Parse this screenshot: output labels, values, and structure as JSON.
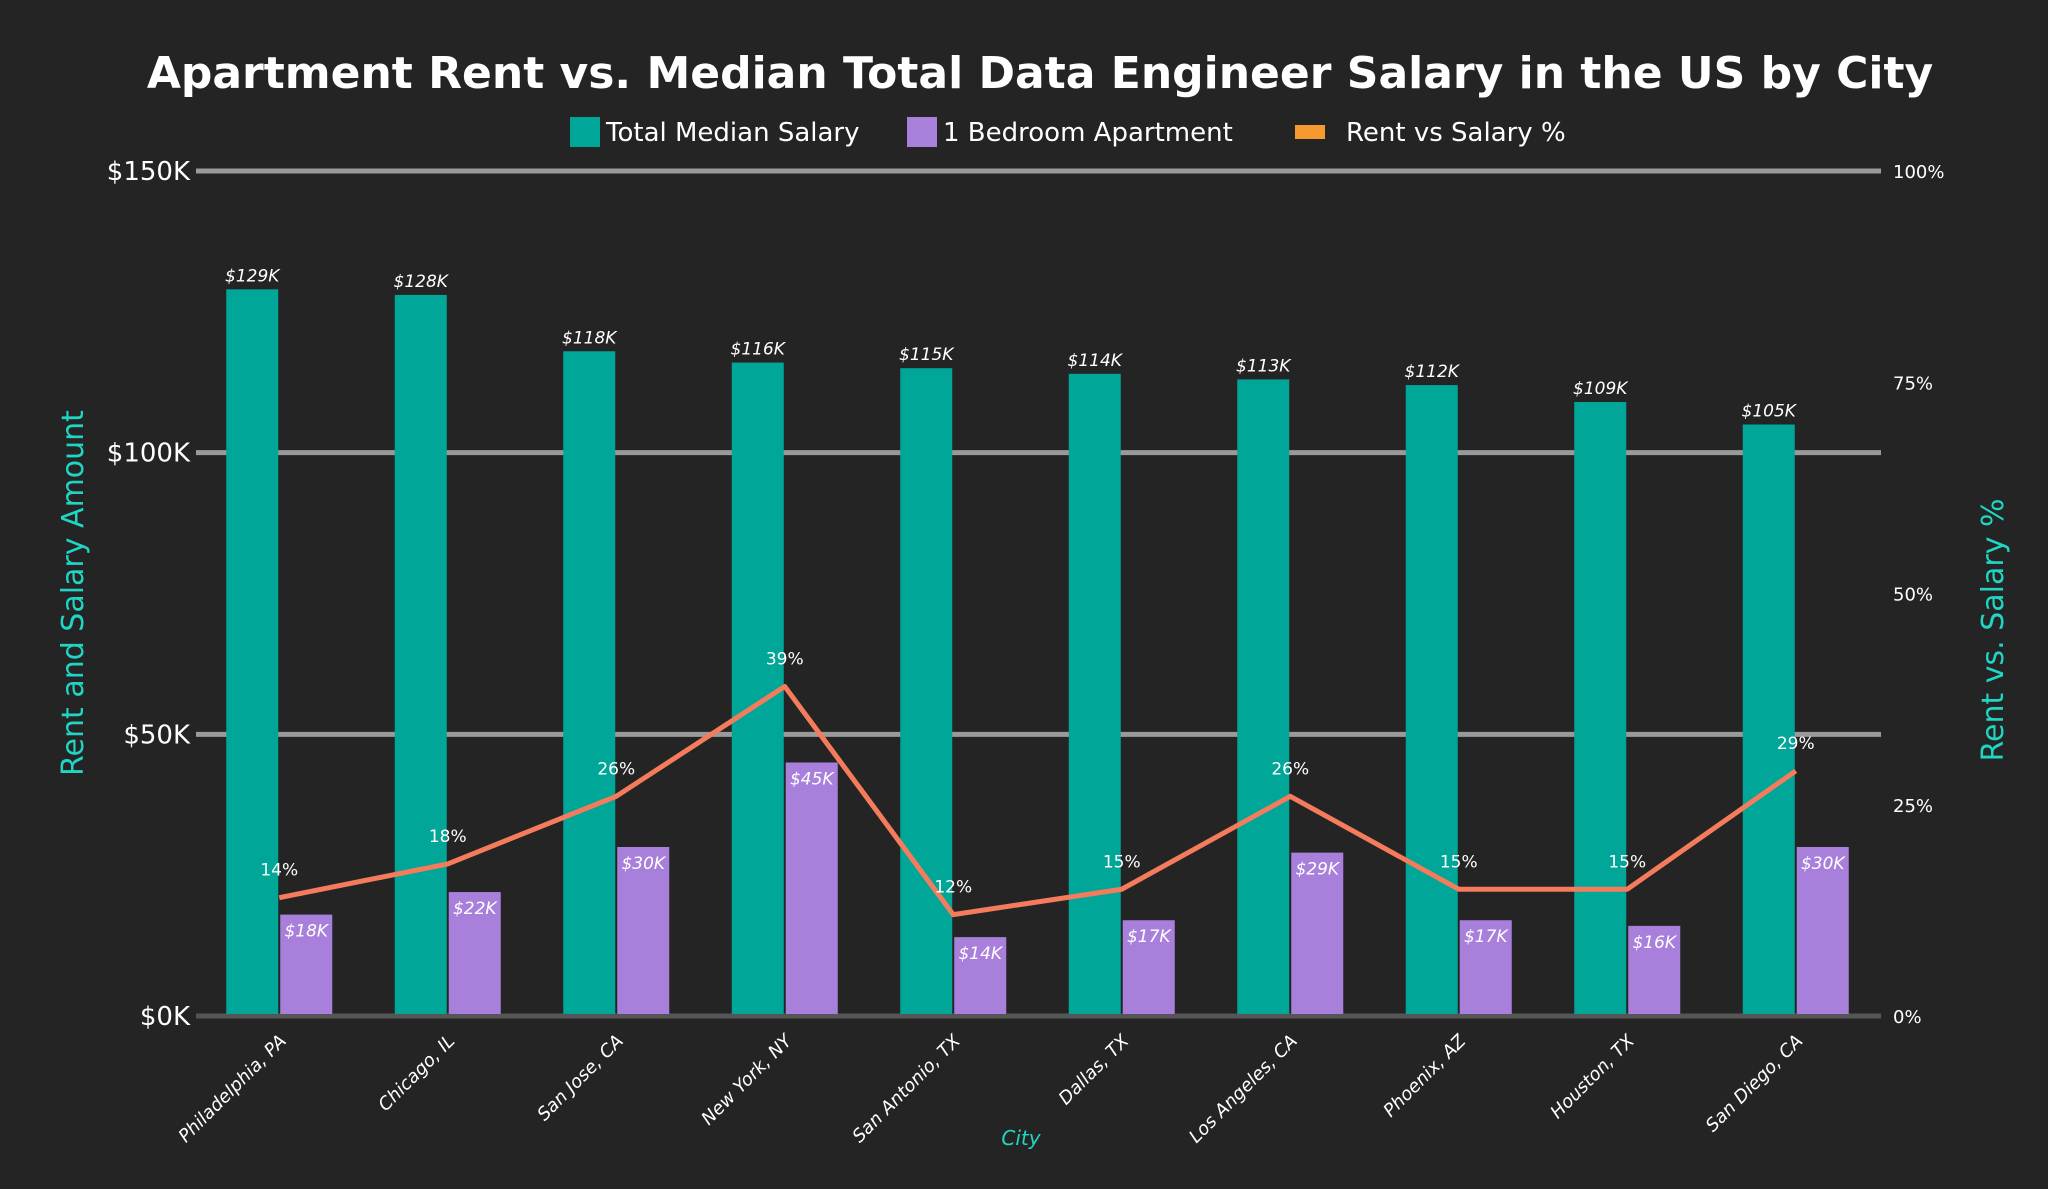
{
  "chart_data": {
    "type": "bar",
    "title": "Apartment Rent vs. Median Total Data Engineer Salary in the US by City",
    "xlabel": "City",
    "ylabel": "Rent and Salary Amount",
    "y2label": "Rent vs. Salary %",
    "ylim": [
      0,
      150000
    ],
    "y2lim": [
      0,
      100
    ],
    "yticks": [
      "$0K",
      "$50K",
      "$100K",
      "$150K"
    ],
    "y2ticks": [
      "0%",
      "25%",
      "50%",
      "75%",
      "100%"
    ],
    "grid": true,
    "legend_placement": "top-center",
    "categories": [
      "Philadelphia, PA",
      "Chicago, IL",
      "San Jose, CA",
      "New York, NY",
      "San Antonio, TX",
      "Dallas, TX",
      "Los Angeles, CA",
      "Phoenix, AZ",
      "Houston, TX",
      "San Diego, CA"
    ],
    "series": [
      {
        "name": "Total Median Salary",
        "type": "bar",
        "color": "#00a698",
        "values": [
          129000,
          128000,
          118000,
          116000,
          115000,
          114000,
          113000,
          112000,
          109000,
          105000
        ],
        "labels": [
          "$129K",
          "$128K",
          "$118K",
          "$116K",
          "$115K",
          "$114K",
          "$113K",
          "$112K",
          "$109K",
          "$105K"
        ]
      },
      {
        "name": "1 Bedroom Apartment",
        "type": "bar",
        "color": "#a880dc",
        "values": [
          18000,
          22000,
          30000,
          45000,
          14000,
          17000,
          29000,
          17000,
          16000,
          30000
        ],
        "labels": [
          "$18K",
          "$22K",
          "$30K",
          "$45K",
          "$14K",
          "$17K",
          "$29K",
          "$17K",
          "$16K",
          "$30K"
        ]
      },
      {
        "name": "Rent vs Salary %",
        "type": "line",
        "axis": "right",
        "color": "#f47c5c",
        "legend_color": "#f59a30",
        "values": [
          14,
          18,
          26,
          39,
          12,
          15,
          26,
          15,
          15,
          29
        ],
        "labels": [
          "14%",
          "18%",
          "26%",
          "39%",
          "12%",
          "15%",
          "26%",
          "15%",
          "15%",
          "29%"
        ]
      }
    ]
  }
}
